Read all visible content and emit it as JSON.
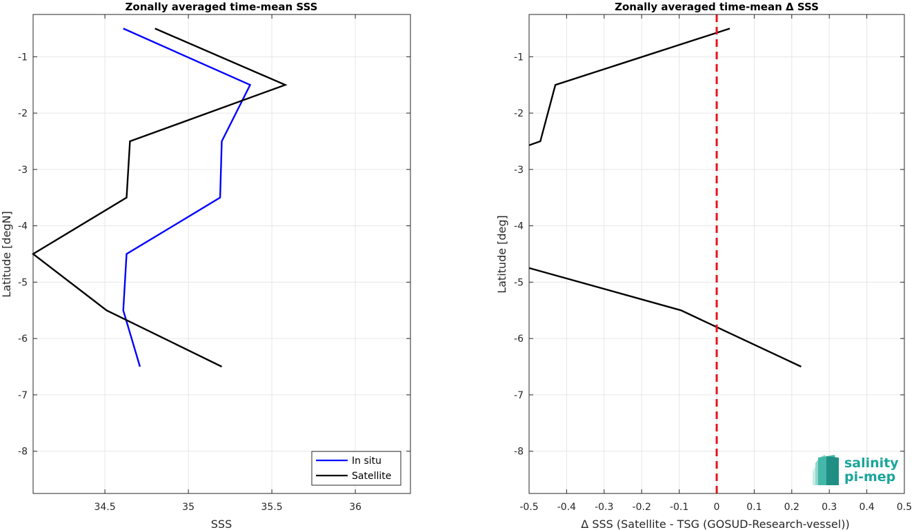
{
  "chart_data": [
    {
      "type": "line",
      "title": "Zonally averaged time-mean SSS",
      "xlabel": "SSS",
      "ylabel": "Latitude [degN]",
      "xlim": [
        34.07,
        36.33
      ],
      "ylim": [
        -8.75,
        -0.25
      ],
      "xticks": [
        34.5,
        35,
        35.5,
        36
      ],
      "xtick_labels": [
        "34.5",
        "35",
        "35.5",
        "36"
      ],
      "yticks": [
        -1,
        -2,
        -3,
        -4,
        -5,
        -6,
        -7,
        -8
      ],
      "ytick_labels": [
        "-1",
        "-2",
        "-3",
        "-4",
        "-5",
        "-6",
        "-7",
        "-8"
      ],
      "grid": true,
      "legend_position": "bottom-right",
      "series": [
        {
          "name": "In situ",
          "color": "#0000ff",
          "points": [
            [
              34.61,
              -0.5
            ],
            [
              35.37,
              -1.5
            ],
            [
              35.2,
              -2.5
            ],
            [
              35.19,
              -3.5
            ],
            [
              34.63,
              -4.5
            ],
            [
              34.61,
              -5.5
            ],
            [
              34.71,
              -6.5
            ]
          ]
        },
        {
          "name": "Satellite",
          "color": "#000000",
          "points": [
            [
              34.8,
              -0.5
            ],
            [
              35.58,
              -1.5
            ],
            [
              34.65,
              -2.5
            ],
            [
              34.63,
              -3.5
            ],
            [
              34.07,
              -4.5
            ],
            [
              34.51,
              -5.5
            ],
            [
              35.2,
              -6.5
            ]
          ]
        }
      ]
    },
    {
      "type": "line",
      "title": "Zonally averaged time-mean Δ SSS",
      "xlabel": "Δ SSS (Satellite - TSG (GOSUD-Research-vessel))",
      "ylabel": "Latitude [deg]",
      "xlim": [
        -0.5,
        0.5
      ],
      "ylim": [
        -8.75,
        -0.25
      ],
      "xticks": [
        -0.5,
        -0.4,
        -0.3,
        -0.2,
        -0.1,
        0,
        0.1,
        0.2,
        0.3,
        0.4,
        0.5
      ],
      "xtick_labels": [
        "-0.5",
        "-0.4",
        "-0.3",
        "-0.2",
        "-0.1",
        "0",
        "0.1",
        "0.2",
        "0.3",
        "0.4",
        "0.5"
      ],
      "yticks": [
        -1,
        -2,
        -3,
        -4,
        -5,
        -6,
        -7,
        -8
      ],
      "ytick_labels": [
        "-1",
        "-2",
        "-3",
        "-4",
        "-5",
        "-6",
        "-7",
        "-8"
      ],
      "grid": true,
      "reference_line": {
        "x": 0,
        "color": "#e8101a",
        "style": "dashed"
      },
      "series": [
        {
          "color": "#000000",
          "segments": [
            [
              [
                0.035,
                -0.5
              ],
              [
                -0.43,
                -1.5
              ],
              [
                -0.47,
                -2.5
              ],
              [
                -0.5,
                -2.57
              ]
            ],
            [
              [
                -0.5,
                -4.75
              ],
              [
                -0.095,
                -5.5
              ],
              [
                0.225,
                -6.5
              ]
            ]
          ]
        }
      ]
    }
  ],
  "logo": {
    "line1": "salinity",
    "line2": "pi-mep",
    "color": "#1aa59a"
  }
}
